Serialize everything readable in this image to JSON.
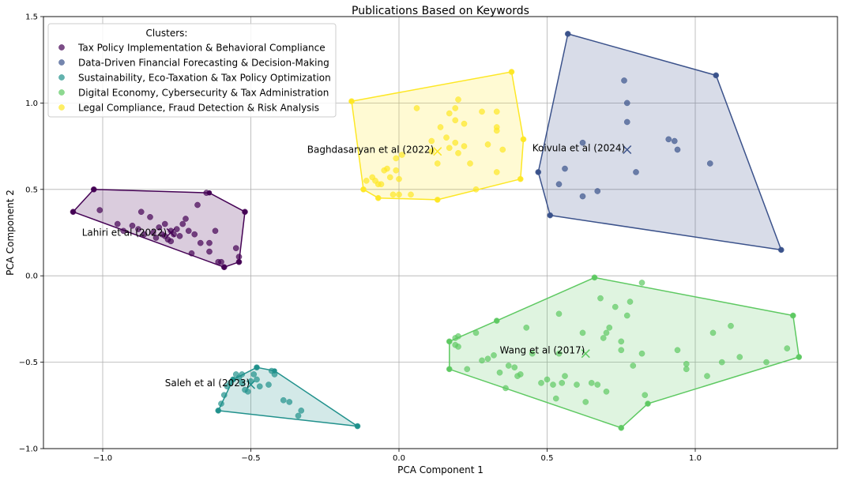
{
  "chart_data": {
    "type": "scatter",
    "title": "Publications Based on Keywords",
    "xlabel": "PCA Component 1",
    "ylabel": "PCA Component 2",
    "xlim": [
      -1.2,
      1.48
    ],
    "ylim": [
      -1.0,
      1.5
    ],
    "xticks": [
      -1.0,
      -0.5,
      0.0,
      0.5,
      1.0
    ],
    "xtick_labels": [
      "−1.0",
      "−0.5",
      "0.0",
      "0.5",
      "1.0"
    ],
    "yticks": [
      -1.0,
      -0.5,
      0.0,
      0.5,
      1.0,
      1.5
    ],
    "ytick_labels": [
      "−1.0",
      "−0.5",
      "0.0",
      "0.5",
      "1.0",
      "1.5"
    ],
    "grid": true,
    "legend": {
      "title": "Clusters:",
      "placement": "top-left"
    },
    "series": [
      {
        "name": "Tax Policy Implementation & Behavioral Compliance",
        "color": "#440154",
        "points": [
          [
            -1.1,
            0.37
          ],
          [
            -1.03,
            0.5
          ],
          [
            -1.01,
            0.38
          ],
          [
            -0.95,
            0.3
          ],
          [
            -0.93,
            0.26
          ],
          [
            -0.9,
            0.29
          ],
          [
            -0.88,
            0.27
          ],
          [
            -0.87,
            0.37
          ],
          [
            -0.86,
            0.24
          ],
          [
            -0.84,
            0.34
          ],
          [
            -0.83,
            0.25
          ],
          [
            -0.82,
            0.22
          ],
          [
            -0.81,
            0.28
          ],
          [
            -0.8,
            0.24
          ],
          [
            -0.79,
            0.23
          ],
          [
            -0.79,
            0.3
          ],
          [
            -0.78,
            0.21
          ],
          [
            -0.77,
            0.26
          ],
          [
            -0.77,
            0.2
          ],
          [
            -0.76,
            0.24
          ],
          [
            -0.75,
            0.27
          ],
          [
            -0.74,
            0.23
          ],
          [
            -0.73,
            0.3
          ],
          [
            -0.72,
            0.33
          ],
          [
            -0.71,
            0.26
          ],
          [
            -0.7,
            0.13
          ],
          [
            -0.69,
            0.24
          ],
          [
            -0.68,
            0.41
          ],
          [
            -0.67,
            0.19
          ],
          [
            -0.65,
            0.48
          ],
          [
            -0.64,
            0.14
          ],
          [
            -0.64,
            0.19
          ],
          [
            -0.62,
            0.26
          ],
          [
            -0.61,
            0.08
          ],
          [
            -0.6,
            0.08
          ],
          [
            -0.59,
            0.05
          ],
          [
            -0.55,
            0.16
          ],
          [
            -0.54,
            0.08
          ],
          [
            -0.54,
            0.11
          ],
          [
            -0.52,
            0.37
          ]
        ],
        "hull": [
          [
            -1.1,
            0.37
          ],
          [
            -1.03,
            0.5
          ],
          [
            -0.64,
            0.48
          ],
          [
            -0.52,
            0.37
          ],
          [
            -0.54,
            0.08
          ],
          [
            -0.59,
            0.05
          ]
        ],
        "centroid": [
          -0.77,
          0.25
        ],
        "label": "Lahiri et al (2022)"
      },
      {
        "name": "Data-Driven Financial Forecasting & Decision-Making",
        "color": "#3b528b",
        "points": [
          [
            0.57,
            1.4
          ],
          [
            1.07,
            1.16
          ],
          [
            0.76,
            1.13
          ],
          [
            0.77,
            1.0
          ],
          [
            0.77,
            0.89
          ],
          [
            0.62,
            0.77
          ],
          [
            0.91,
            0.79
          ],
          [
            0.93,
            0.78
          ],
          [
            0.94,
            0.73
          ],
          [
            1.05,
            0.65
          ],
          [
            0.47,
            0.6
          ],
          [
            0.56,
            0.62
          ],
          [
            0.67,
            0.49
          ],
          [
            0.8,
            0.6
          ],
          [
            0.54,
            0.53
          ],
          [
            0.62,
            0.46
          ],
          [
            0.51,
            0.35
          ],
          [
            1.29,
            0.15
          ]
        ],
        "hull": [
          [
            0.57,
            1.4
          ],
          [
            1.07,
            1.16
          ],
          [
            1.29,
            0.15
          ],
          [
            0.51,
            0.35
          ],
          [
            0.47,
            0.6
          ]
        ],
        "centroid": [
          0.77,
          0.73
        ],
        "label": "Koivula et al (2024)"
      },
      {
        "name": "Sustainability, Eco-Taxation & Tax Policy Optimization",
        "color": "#21918c",
        "points": [
          [
            -0.61,
            -0.78
          ],
          [
            -0.6,
            -0.74
          ],
          [
            -0.59,
            -0.69
          ],
          [
            -0.58,
            -0.64
          ],
          [
            -0.57,
            -0.62
          ],
          [
            -0.56,
            -0.6
          ],
          [
            -0.55,
            -0.57
          ],
          [
            -0.54,
            -0.59
          ],
          [
            -0.53,
            -0.62
          ],
          [
            -0.53,
            -0.57
          ],
          [
            -0.52,
            -0.66
          ],
          [
            -0.51,
            -0.67
          ],
          [
            -0.5,
            -0.61
          ],
          [
            -0.49,
            -0.57
          ],
          [
            -0.48,
            -0.53
          ],
          [
            -0.48,
            -0.6
          ],
          [
            -0.47,
            -0.64
          ],
          [
            -0.44,
            -0.63
          ],
          [
            -0.43,
            -0.55
          ],
          [
            -0.42,
            -0.57
          ],
          [
            -0.39,
            -0.72
          ],
          [
            -0.37,
            -0.73
          ],
          [
            -0.34,
            -0.81
          ],
          [
            -0.33,
            -0.78
          ],
          [
            -0.14,
            -0.87
          ]
        ],
        "hull": [
          [
            -0.61,
            -0.78
          ],
          [
            -0.56,
            -0.6
          ],
          [
            -0.48,
            -0.53
          ],
          [
            -0.42,
            -0.55
          ],
          [
            -0.14,
            -0.87
          ]
        ],
        "centroid": [
          -0.5,
          -0.63
        ],
        "label": "Saleh et al (2023)"
      },
      {
        "name": "Digital Economy, Cybersecurity & Tax Administration",
        "color": "#5ec962",
        "points": [
          [
            0.66,
            -0.01
          ],
          [
            0.82,
            -0.04
          ],
          [
            0.68,
            -0.13
          ],
          [
            0.78,
            -0.15
          ],
          [
            0.73,
            -0.18
          ],
          [
            0.54,
            -0.22
          ],
          [
            0.77,
            -0.23
          ],
          [
            0.33,
            -0.26
          ],
          [
            0.43,
            -0.3
          ],
          [
            0.71,
            -0.3
          ],
          [
            1.12,
            -0.29
          ],
          [
            1.33,
            -0.23
          ],
          [
            0.26,
            -0.33
          ],
          [
            0.62,
            -0.33
          ],
          [
            0.7,
            -0.33
          ],
          [
            1.06,
            -0.33
          ],
          [
            0.17,
            -0.38
          ],
          [
            0.19,
            -0.36
          ],
          [
            0.2,
            -0.35
          ],
          [
            0.19,
            -0.4
          ],
          [
            0.2,
            -0.41
          ],
          [
            0.75,
            -0.38
          ],
          [
            0.69,
            -0.36
          ],
          [
            0.32,
            -0.46
          ],
          [
            0.45,
            -0.45
          ],
          [
            0.54,
            -0.45
          ],
          [
            0.75,
            -0.43
          ],
          [
            0.82,
            -0.45
          ],
          [
            0.94,
            -0.43
          ],
          [
            1.15,
            -0.47
          ],
          [
            1.31,
            -0.42
          ],
          [
            1.35,
            -0.47
          ],
          [
            0.17,
            -0.54
          ],
          [
            0.23,
            -0.54
          ],
          [
            0.28,
            -0.49
          ],
          [
            0.3,
            -0.48
          ],
          [
            0.37,
            -0.52
          ],
          [
            0.39,
            -0.53
          ],
          [
            0.4,
            -0.58
          ],
          [
            0.41,
            -0.57
          ],
          [
            0.34,
            -0.56
          ],
          [
            0.48,
            -0.62
          ],
          [
            0.5,
            -0.6
          ],
          [
            0.52,
            -0.63
          ],
          [
            0.55,
            -0.62
          ],
          [
            0.56,
            -0.58
          ],
          [
            0.6,
            -0.63
          ],
          [
            0.65,
            -0.62
          ],
          [
            0.67,
            -0.63
          ],
          [
            0.7,
            -0.67
          ],
          [
            0.79,
            -0.52
          ],
          [
            0.97,
            -0.51
          ],
          [
            0.97,
            -0.54
          ],
          [
            1.04,
            -0.58
          ],
          [
            1.09,
            -0.5
          ],
          [
            1.24,
            -0.5
          ],
          [
            0.36,
            -0.65
          ],
          [
            0.53,
            -0.71
          ],
          [
            0.63,
            -0.73
          ],
          [
            0.75,
            -0.88
          ],
          [
            0.83,
            -0.69
          ],
          [
            0.84,
            -0.74
          ]
        ],
        "hull": [
          [
            0.17,
            -0.38
          ],
          [
            0.33,
            -0.26
          ],
          [
            0.66,
            -0.01
          ],
          [
            1.33,
            -0.23
          ],
          [
            1.35,
            -0.47
          ],
          [
            0.84,
            -0.74
          ],
          [
            0.75,
            -0.88
          ],
          [
            0.17,
            -0.54
          ]
        ],
        "centroid": [
          0.63,
          -0.45
        ],
        "label": "Wang et al (2017)"
      },
      {
        "name": "Legal Compliance, Fraud Detection & Risk Analysis",
        "color": "#fde725",
        "points": [
          [
            -0.16,
            1.01
          ],
          [
            0.38,
            1.18
          ],
          [
            0.06,
            0.97
          ],
          [
            0.2,
            1.02
          ],
          [
            0.28,
            0.95
          ],
          [
            0.33,
            0.95
          ],
          [
            0.17,
            0.94
          ],
          [
            0.19,
            0.97
          ],
          [
            0.19,
            0.9
          ],
          [
            0.14,
            0.86
          ],
          [
            0.22,
            0.88
          ],
          [
            0.33,
            0.86
          ],
          [
            0.33,
            0.84
          ],
          [
            0.16,
            0.8
          ],
          [
            0.11,
            0.78
          ],
          [
            0.19,
            0.77
          ],
          [
            0.22,
            0.75
          ],
          [
            0.3,
            0.76
          ],
          [
            0.42,
            0.79
          ],
          [
            0.35,
            0.73
          ],
          [
            0.17,
            0.74
          ],
          [
            0.01,
            0.7
          ],
          [
            -0.01,
            0.68
          ],
          [
            0.13,
            0.65
          ],
          [
            0.24,
            0.65
          ],
          [
            0.11,
            0.72
          ],
          [
            0.2,
            0.71
          ],
          [
            -0.05,
            0.61
          ],
          [
            -0.04,
            0.62
          ],
          [
            -0.01,
            0.61
          ],
          [
            -0.03,
            0.57
          ],
          [
            -0.08,
            0.55
          ],
          [
            -0.06,
            0.53
          ],
          [
            -0.07,
            0.53
          ],
          [
            -0.09,
            0.57
          ],
          [
            -0.11,
            0.55
          ],
          [
            0.0,
            0.56
          ],
          [
            -0.12,
            0.5
          ],
          [
            -0.02,
            0.47
          ],
          [
            0.0,
            0.47
          ],
          [
            0.04,
            0.47
          ],
          [
            -0.07,
            0.45
          ],
          [
            0.26,
            0.5
          ],
          [
            0.33,
            0.6
          ],
          [
            0.41,
            0.56
          ],
          [
            0.13,
            0.44
          ]
        ],
        "hull": [
          [
            -0.16,
            1.01
          ],
          [
            0.38,
            1.18
          ],
          [
            0.42,
            0.79
          ],
          [
            0.41,
            0.56
          ],
          [
            0.13,
            0.44
          ],
          [
            -0.07,
            0.45
          ],
          [
            -0.12,
            0.5
          ]
        ],
        "centroid": [
          0.13,
          0.72
        ],
        "label": "Baghdasaryan et al (2022)"
      }
    ],
    "annotations": [
      {
        "text": "Lahiri et al (2022)",
        "x": -1.07,
        "y": 0.25
      },
      {
        "text": "Koivula et al (2024)",
        "x": 0.45,
        "y": 0.74
      },
      {
        "text": "Baghdasaryan et al (2022)",
        "x": -0.31,
        "y": 0.73
      },
      {
        "text": "Wang et al (2017)",
        "x": 0.34,
        "y": -0.43
      },
      {
        "text": "Saleh et al (2023)",
        "x": -0.79,
        "y": -0.62
      }
    ]
  }
}
